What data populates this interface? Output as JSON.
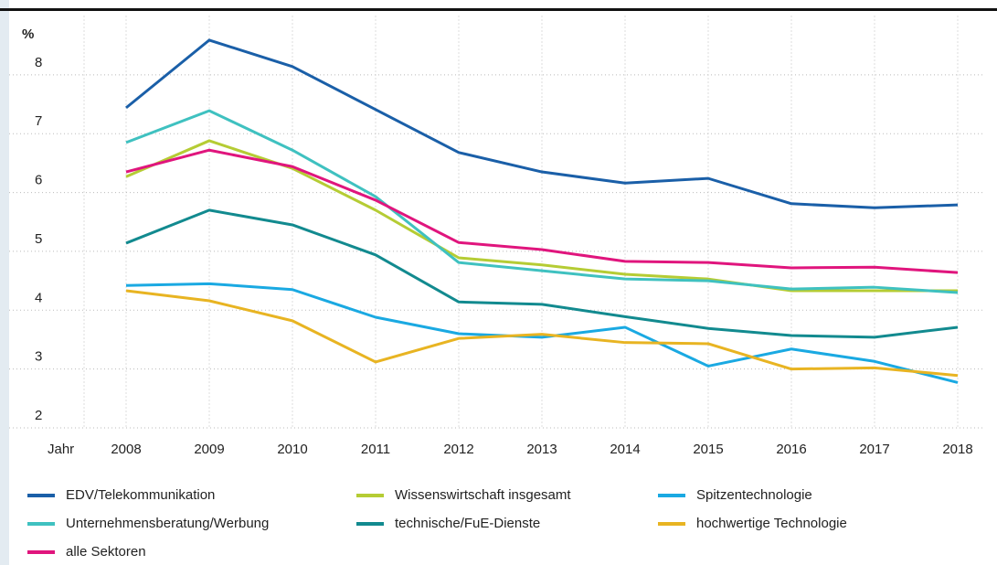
{
  "chart_data": {
    "type": "line",
    "y_label": "%",
    "x_label": "Jahr",
    "categories": [
      "2008",
      "2009",
      "2010",
      "2011",
      "2012",
      "2013",
      "2014",
      "2015",
      "2016",
      "2017",
      "2018"
    ],
    "ylim": [
      2,
      9
    ],
    "yticks": [
      2,
      3,
      4,
      5,
      6,
      7,
      8
    ],
    "grid": true,
    "series": [
      {
        "name": "EDV/Telekommunikation",
        "color": "#1a5fa8",
        "values": [
          7.44,
          8.59,
          8.14,
          7.41,
          6.68,
          6.35,
          6.16,
          6.24,
          5.81,
          5.74,
          5.79
        ]
      },
      {
        "name": "Wissenswirtschaft insgesamt",
        "color": "#b5cc34",
        "values": [
          6.27,
          6.88,
          6.41,
          5.7,
          4.89,
          4.77,
          4.61,
          4.53,
          4.33,
          4.33,
          4.33
        ]
      },
      {
        "name": "Spitzentechnologie",
        "color": "#1aa9e2",
        "values": [
          4.42,
          4.45,
          4.35,
          3.88,
          3.6,
          3.54,
          3.71,
          3.05,
          3.34,
          3.13,
          2.77
        ]
      },
      {
        "name": "Unternehmensberatung/Werbung",
        "color": "#3fc1c0",
        "values": [
          6.85,
          7.39,
          6.72,
          5.93,
          4.81,
          4.67,
          4.53,
          4.5,
          4.36,
          4.39,
          4.3
        ]
      },
      {
        "name": "technische/FuE-Dienste",
        "color": "#128a8f",
        "values": [
          5.14,
          5.7,
          5.45,
          4.94,
          4.14,
          4.1,
          3.89,
          3.69,
          3.57,
          3.54,
          3.71
        ]
      },
      {
        "name": "hochwertige Technologie",
        "color": "#e8b422",
        "values": [
          4.33,
          4.16,
          3.82,
          3.12,
          3.52,
          3.59,
          3.45,
          3.43,
          3.0,
          3.02,
          2.89
        ]
      },
      {
        "name": "alle Sektoren",
        "color": "#e0157d",
        "values": [
          6.35,
          6.72,
          6.44,
          5.87,
          5.15,
          5.03,
          4.83,
          4.81,
          4.72,
          4.73,
          4.64
        ]
      }
    ]
  }
}
